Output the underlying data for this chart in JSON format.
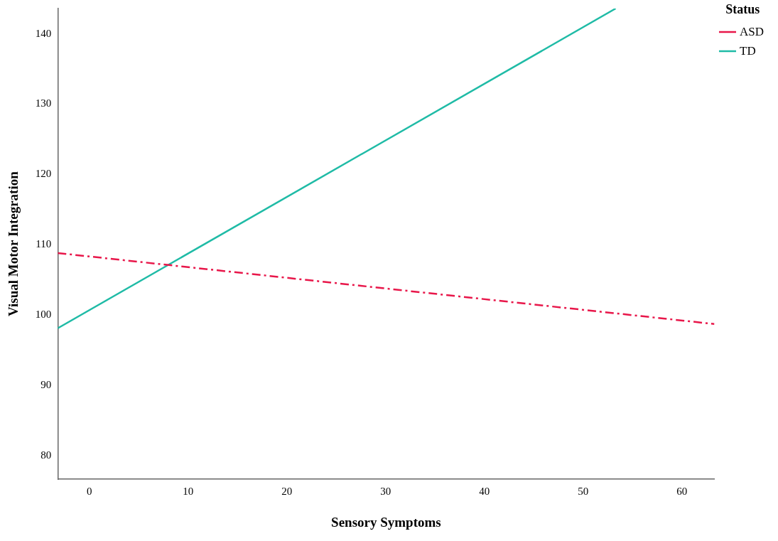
{
  "chart_data": {
    "type": "line",
    "xlabel": "Sensory Symptoms",
    "ylabel": "Visual Motor Integration",
    "legend_title": "Status",
    "legend": "top right",
    "grid": false,
    "marker": "none",
    "xlim": [
      -3.2,
      63.3
    ],
    "xticks": [
      0,
      10,
      20,
      30,
      40,
      50,
      60
    ],
    "ylim": [
      76.6,
      143.6
    ],
    "yticks": [
      80,
      90,
      100,
      110,
      120,
      130,
      140
    ],
    "series": [
      {
        "name": "ASD",
        "color": "#e8174a",
        "line_style": "dashed",
        "x": [
          -3.2,
          63.3
        ],
        "values": [
          108.8,
          98.7
        ]
      },
      {
        "name": "TD",
        "color": "#1fbba6",
        "line_style": "solid",
        "x": [
          -3.2,
          53.3
        ],
        "values": [
          98.1,
          143.6
        ]
      }
    ]
  }
}
